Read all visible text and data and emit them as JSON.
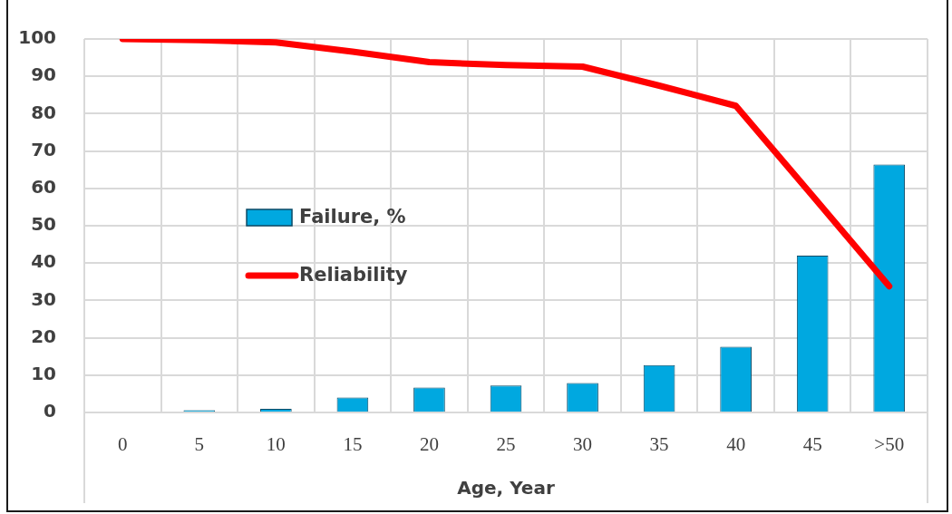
{
  "chart_data": {
    "type": "bar",
    "xlabel": "Age, Year",
    "categories": [
      "0",
      "5",
      "10",
      "15",
      "20",
      "25",
      "30",
      "35",
      "40",
      "45",
      ">50"
    ],
    "series": [
      {
        "name": "Failure, %",
        "color": "#00a8e0",
        "values": [
          0,
          0.6,
          1.0,
          4.0,
          6.7,
          7.2,
          7.9,
          12.7,
          17.6,
          42.0,
          66.4
        ]
      },
      {
        "name": "Reliability",
        "type": "line",
        "color": "#ff0000",
        "values": [
          100,
          99.7,
          99.1,
          96.6,
          93.8,
          93.0,
          92.6,
          87.5,
          82.1,
          58.0,
          33.8
        ]
      }
    ],
    "ylim": [
      0,
      100
    ],
    "yticks": [
      0,
      10,
      20,
      30,
      40,
      50,
      60,
      70,
      80,
      90,
      100
    ],
    "grid": true,
    "legend": "left",
    "marker": "none"
  }
}
